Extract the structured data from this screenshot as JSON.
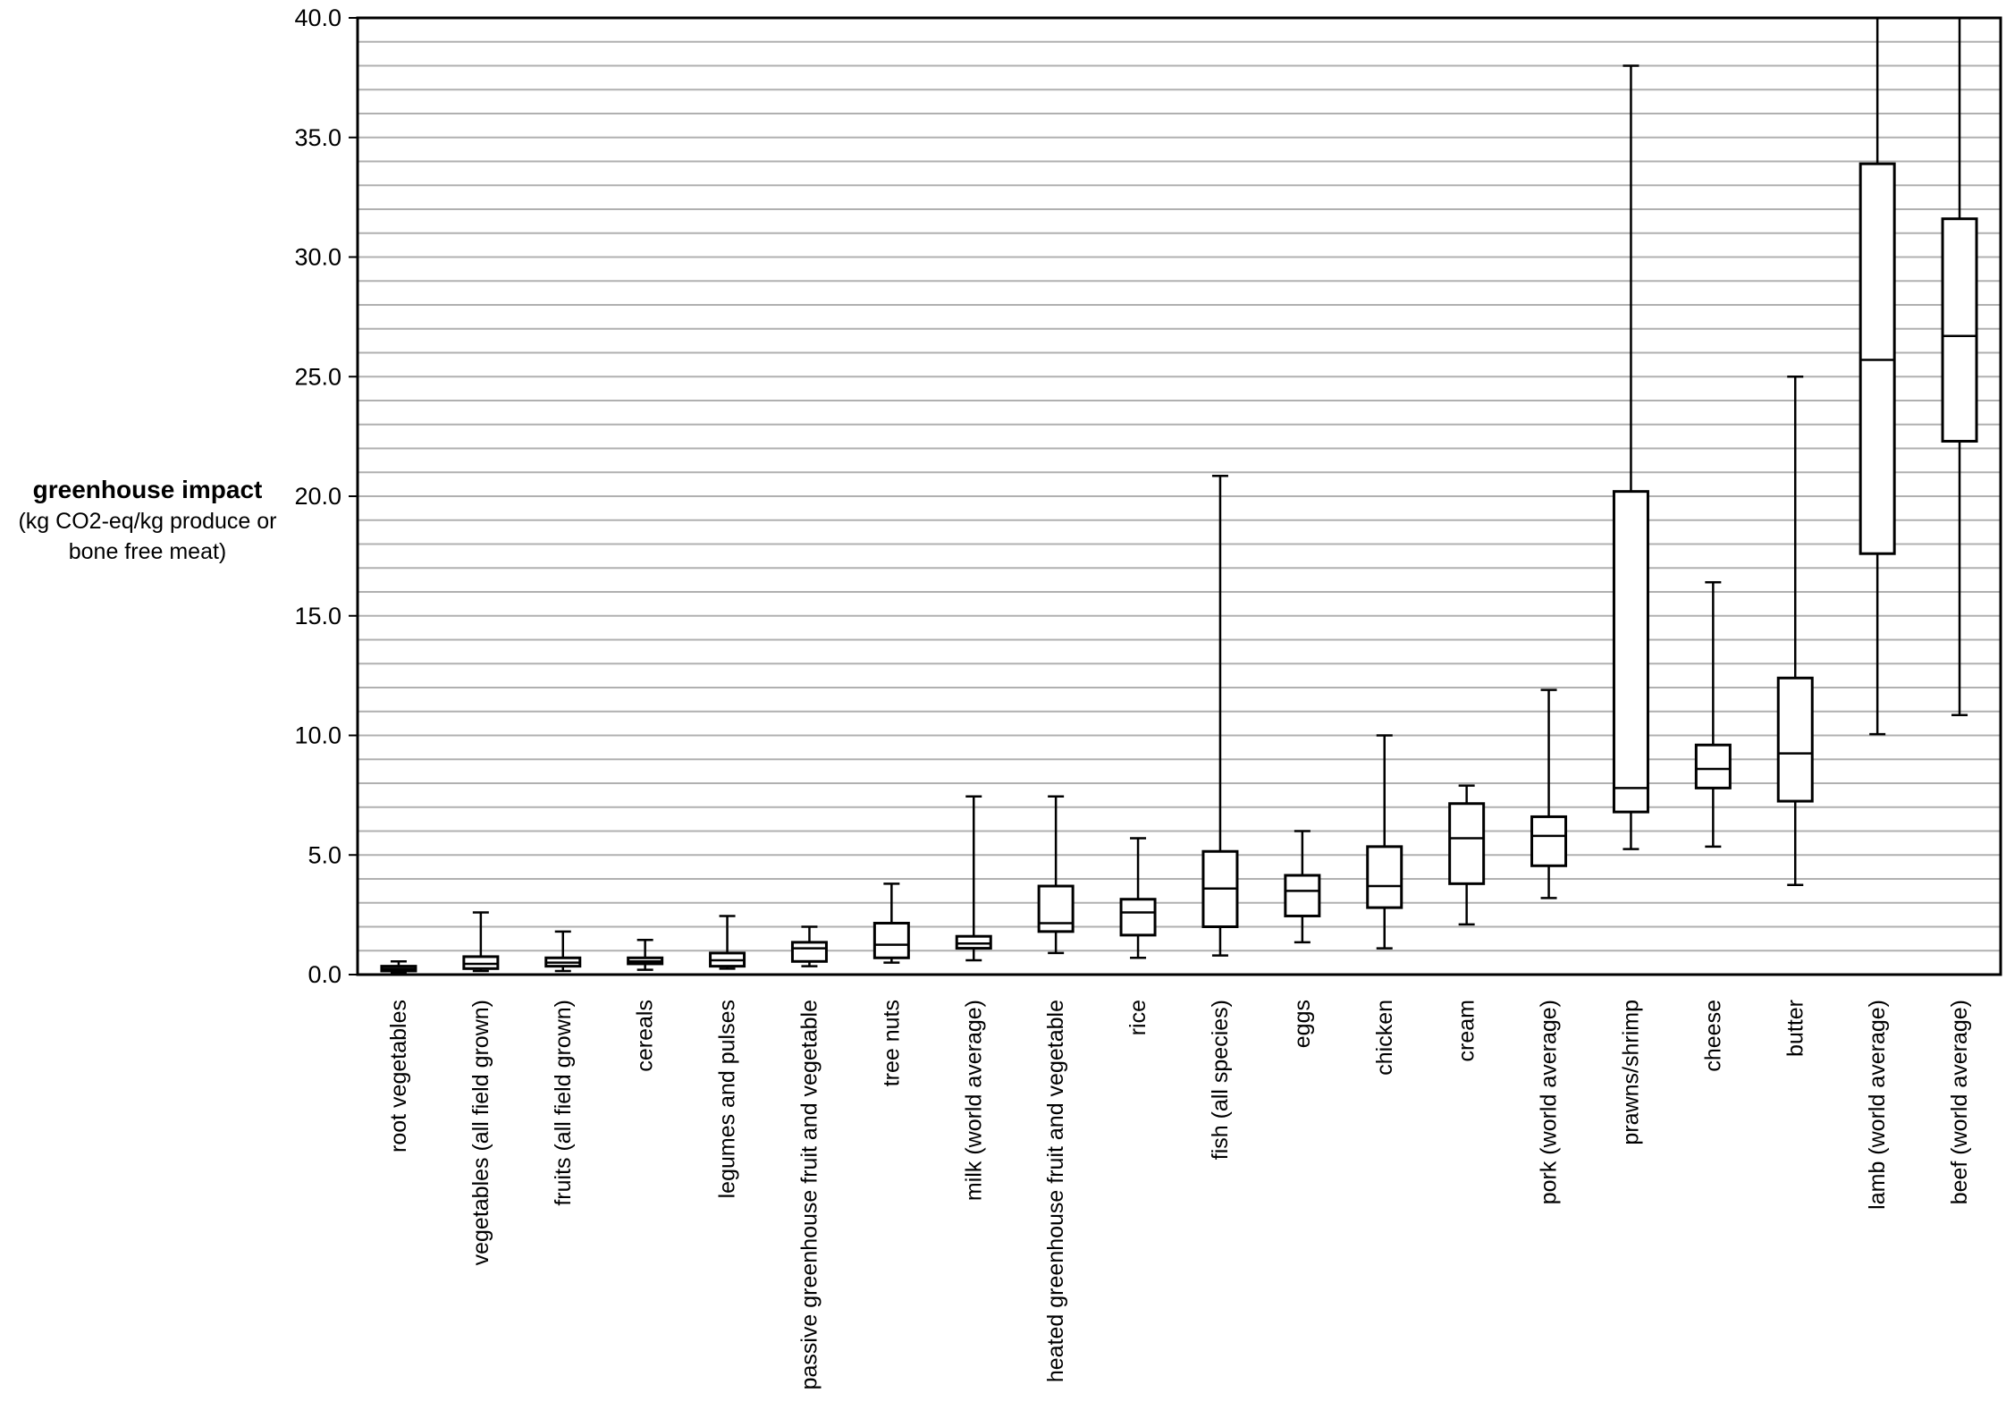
{
  "chart_data": {
    "type": "box",
    "ylabel_title": "greenhouse impact",
    "ylabel_sub_1": "(kg CO2-eq/kg produce or",
    "ylabel_sub_2": "bone free meat)",
    "ylim": [
      0,
      40
    ],
    "yticks": [
      "0.0",
      "5.0",
      "10.0",
      "15.0",
      "20.0",
      "25.0",
      "30.0",
      "35.0",
      "40.0"
    ],
    "grid": true,
    "categories": [
      "root vegetables",
      "vegetables (all field grown)",
      "fruits (all field grown)",
      "cereals",
      "legumes and pulses",
      "passive greenhouse fruit and vegetable",
      "tree nuts",
      "milk (world average)",
      "heated greenhouse fruit and vegetable",
      "rice",
      "fish (all species)",
      "eggs",
      "chicken",
      "cream",
      "pork (world average)",
      "prawns/shrimp",
      "cheese",
      "butter",
      "lamb (world average)",
      "beef (world average)"
    ],
    "boxes": [
      {
        "min": 0.1,
        "q1": 0.15,
        "median": 0.25,
        "q3": 0.35,
        "max": 0.55
      },
      {
        "min": 0.15,
        "q1": 0.25,
        "median": 0.45,
        "q3": 0.75,
        "max": 2.6
      },
      {
        "min": 0.15,
        "q1": 0.35,
        "median": 0.5,
        "q3": 0.7,
        "max": 1.8
      },
      {
        "min": 0.2,
        "q1": 0.45,
        "median": 0.55,
        "q3": 0.7,
        "max": 1.45
      },
      {
        "min": 0.25,
        "q1": 0.35,
        "median": 0.6,
        "q3": 0.9,
        "max": 2.45
      },
      {
        "min": 0.35,
        "q1": 0.55,
        "median": 1.1,
        "q3": 1.35,
        "max": 2.0
      },
      {
        "min": 0.5,
        "q1": 0.7,
        "median": 1.25,
        "q3": 2.15,
        "max": 3.8
      },
      {
        "min": 0.6,
        "q1": 1.1,
        "median": 1.3,
        "q3": 1.6,
        "max": 7.45
      },
      {
        "min": 0.9,
        "q1": 1.8,
        "median": 2.15,
        "q3": 3.7,
        "max": 7.45
      },
      {
        "min": 0.7,
        "q1": 1.65,
        "median": 2.6,
        "q3": 3.15,
        "max": 5.7
      },
      {
        "min": 0.8,
        "q1": 2.0,
        "median": 3.6,
        "q3": 5.15,
        "max": 20.85
      },
      {
        "min": 1.35,
        "q1": 2.45,
        "median": 3.5,
        "q3": 4.15,
        "max": 6.0
      },
      {
        "min": 1.1,
        "q1": 2.8,
        "median": 3.7,
        "q3": 5.35,
        "max": 10.0
      },
      {
        "min": 2.1,
        "q1": 3.8,
        "median": 5.7,
        "q3": 7.15,
        "max": 7.9
      },
      {
        "min": 3.2,
        "q1": 4.55,
        "median": 5.8,
        "q3": 6.6,
        "max": 11.9
      },
      {
        "min": 5.25,
        "q1": 6.8,
        "median": 7.8,
        "q3": 20.2,
        "max": 38.0
      },
      {
        "min": 5.35,
        "q1": 7.8,
        "median": 8.6,
        "q3": 9.6,
        "max": 16.4
      },
      {
        "min": 3.75,
        "q1": 7.25,
        "median": 9.25,
        "q3": 12.4,
        "max": 25.0
      },
      {
        "min": 10.05,
        "q1": 17.6,
        "median": 25.7,
        "q3": 33.9,
        "max": 40.0
      },
      {
        "min": 10.85,
        "q1": 22.3,
        "median": 26.7,
        "q3": 31.6,
        "max": 40.0
      }
    ]
  }
}
